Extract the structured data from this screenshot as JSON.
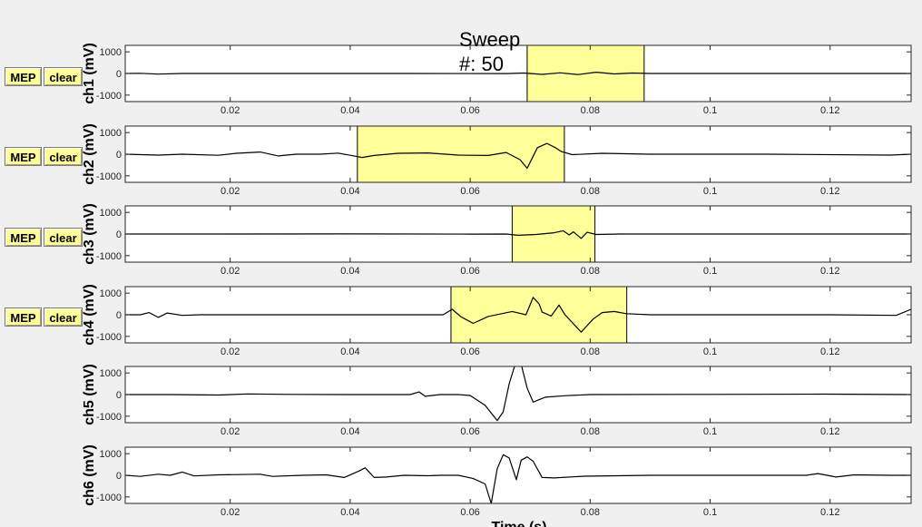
{
  "window": {
    "title_line1": "Sweep",
    "title_line2": "#: 50"
  },
  "buttons": {
    "mep_label": "MEP",
    "clear_label": "clear"
  },
  "colors": {
    "window_bg": "#f0f0f0",
    "axes_bg": "#ffffff",
    "highlight": "#ffff99",
    "trace": "#000000"
  },
  "chart_data": {
    "type": "line",
    "xlabel": "Time (s)",
    "xlim": [
      0.0025,
      0.1335
    ],
    "x_ticks": [
      0.02,
      0.04,
      0.06,
      0.08,
      0.1,
      0.12
    ],
    "x_tick_labels": [
      "0.02",
      "0.04",
      "0.06",
      "0.08",
      "0.1",
      "0.12"
    ],
    "ylim": [
      -1300,
      1300
    ],
    "y_ticks": [
      1000,
      0,
      -1000
    ],
    "y_tick_labels": [
      "1000",
      "0",
      "-1000"
    ],
    "channels": [
      {
        "ylabel": "ch1 (mV)",
        "has_buttons": true,
        "window": [
          0.0695,
          0.089
        ],
        "trace": [
          [
            0.0025,
            0
          ],
          [
            0.005,
            10
          ],
          [
            0.008,
            -30
          ],
          [
            0.012,
            0
          ],
          [
            0.03,
            0
          ],
          [
            0.05,
            0
          ],
          [
            0.066,
            -5
          ],
          [
            0.069,
            20
          ],
          [
            0.072,
            -40
          ],
          [
            0.075,
            30
          ],
          [
            0.078,
            -50
          ],
          [
            0.081,
            60
          ],
          [
            0.084,
            -20
          ],
          [
            0.087,
            20
          ],
          [
            0.09,
            0
          ],
          [
            0.11,
            0
          ],
          [
            0.1335,
            0
          ]
        ]
      },
      {
        "ylabel": "ch2 (mV)",
        "has_buttons": true,
        "window": [
          0.0412,
          0.0757
        ],
        "trace": [
          [
            0.0025,
            0
          ],
          [
            0.008,
            -40
          ],
          [
            0.012,
            0
          ],
          [
            0.018,
            -50
          ],
          [
            0.021,
            40
          ],
          [
            0.025,
            100
          ],
          [
            0.028,
            -80
          ],
          [
            0.031,
            0
          ],
          [
            0.035,
            0
          ],
          [
            0.038,
            50
          ],
          [
            0.04,
            -50
          ],
          [
            0.042,
            -150
          ],
          [
            0.044,
            -60
          ],
          [
            0.048,
            40
          ],
          [
            0.053,
            60
          ],
          [
            0.058,
            -40
          ],
          [
            0.063,
            -60
          ],
          [
            0.066,
            80
          ],
          [
            0.0683,
            -250
          ],
          [
            0.0695,
            -650
          ],
          [
            0.0712,
            300
          ],
          [
            0.0728,
            500
          ],
          [
            0.0742,
            300
          ],
          [
            0.0752,
            120
          ],
          [
            0.077,
            -20
          ],
          [
            0.082,
            40
          ],
          [
            0.09,
            0
          ],
          [
            0.11,
            0
          ],
          [
            0.13,
            -40
          ],
          [
            0.1335,
            0
          ]
        ]
      },
      {
        "ylabel": "ch3 (mV)",
        "has_buttons": true,
        "window": [
          0.067,
          0.0808
        ],
        "trace": [
          [
            0.0025,
            0
          ],
          [
            0.02,
            0
          ],
          [
            0.04,
            5
          ],
          [
            0.06,
            -5
          ],
          [
            0.066,
            0
          ],
          [
            0.068,
            -60
          ],
          [
            0.071,
            -20
          ],
          [
            0.074,
            60
          ],
          [
            0.0755,
            150
          ],
          [
            0.0765,
            -40
          ],
          [
            0.0772,
            100
          ],
          [
            0.0785,
            -200
          ],
          [
            0.0795,
            80
          ],
          [
            0.081,
            -20
          ],
          [
            0.085,
            0
          ],
          [
            0.11,
            0
          ],
          [
            0.1335,
            0
          ]
        ]
      },
      {
        "ylabel": "ch4 (mV)",
        "has_buttons": true,
        "window": [
          0.0568,
          0.0861
        ],
        "trace": [
          [
            0.0025,
            0
          ],
          [
            0.005,
            0
          ],
          [
            0.0065,
            100
          ],
          [
            0.008,
            -120
          ],
          [
            0.0095,
            80
          ],
          [
            0.012,
            -30
          ],
          [
            0.015,
            0
          ],
          [
            0.03,
            0
          ],
          [
            0.05,
            0
          ],
          [
            0.0555,
            0
          ],
          [
            0.057,
            250
          ],
          [
            0.0585,
            -100
          ],
          [
            0.0605,
            -400
          ],
          [
            0.063,
            -80
          ],
          [
            0.067,
            150
          ],
          [
            0.0693,
            0
          ],
          [
            0.0705,
            800
          ],
          [
            0.0715,
            500
          ],
          [
            0.072,
            120
          ],
          [
            0.0735,
            -60
          ],
          [
            0.0748,
            450
          ],
          [
            0.0758,
            0
          ],
          [
            0.0785,
            -800
          ],
          [
            0.0805,
            -200
          ],
          [
            0.082,
            100
          ],
          [
            0.084,
            150
          ],
          [
            0.086,
            50
          ],
          [
            0.09,
            0
          ],
          [
            0.12,
            0
          ],
          [
            0.131,
            -30
          ],
          [
            0.1335,
            250
          ]
        ]
      },
      {
        "ylabel": "ch5 (mV)",
        "has_buttons": false,
        "window": null,
        "trace": [
          [
            0.0025,
            0
          ],
          [
            0.01,
            0
          ],
          [
            0.018,
            -20
          ],
          [
            0.023,
            30
          ],
          [
            0.03,
            10
          ],
          [
            0.04,
            0
          ],
          [
            0.05,
            0
          ],
          [
            0.0515,
            120
          ],
          [
            0.0525,
            -80
          ],
          [
            0.055,
            0
          ],
          [
            0.058,
            0
          ],
          [
            0.06,
            -40
          ],
          [
            0.0625,
            -500
          ],
          [
            0.0645,
            -1200
          ],
          [
            0.0655,
            -800
          ],
          [
            0.0665,
            500
          ],
          [
            0.0675,
            1400
          ],
          [
            0.0685,
            1400
          ],
          [
            0.0695,
            300
          ],
          [
            0.0705,
            -350
          ],
          [
            0.0725,
            -120
          ],
          [
            0.076,
            -50
          ],
          [
            0.08,
            0
          ],
          [
            0.1,
            10
          ],
          [
            0.119,
            20
          ],
          [
            0.1335,
            0
          ]
        ]
      },
      {
        "ylabel": "ch6 (mV)",
        "has_buttons": false,
        "window": null,
        "trace": [
          [
            0.0025,
            0
          ],
          [
            0.005,
            -50
          ],
          [
            0.008,
            50
          ],
          [
            0.01,
            0
          ],
          [
            0.012,
            150
          ],
          [
            0.014,
            -30
          ],
          [
            0.018,
            20
          ],
          [
            0.025,
            50
          ],
          [
            0.027,
            -50
          ],
          [
            0.032,
            0
          ],
          [
            0.036,
            20
          ],
          [
            0.039,
            -100
          ],
          [
            0.0415,
            200
          ],
          [
            0.0425,
            350
          ],
          [
            0.044,
            -100
          ],
          [
            0.046,
            -80
          ],
          [
            0.049,
            0
          ],
          [
            0.053,
            -20
          ],
          [
            0.055,
            0
          ],
          [
            0.058,
            0
          ],
          [
            0.0605,
            -150
          ],
          [
            0.0625,
            -400
          ],
          [
            0.0635,
            -1300
          ],
          [
            0.0645,
            300
          ],
          [
            0.0655,
            950
          ],
          [
            0.0665,
            800
          ],
          [
            0.0677,
            -200
          ],
          [
            0.0685,
            700
          ],
          [
            0.0695,
            850
          ],
          [
            0.0705,
            650
          ],
          [
            0.072,
            -100
          ],
          [
            0.074,
            -120
          ],
          [
            0.079,
            -40
          ],
          [
            0.09,
            0
          ],
          [
            0.116,
            0
          ],
          [
            0.118,
            80
          ],
          [
            0.121,
            -80
          ],
          [
            0.124,
            20
          ],
          [
            0.13,
            0
          ],
          [
            0.1335,
            0
          ]
        ]
      }
    ]
  }
}
